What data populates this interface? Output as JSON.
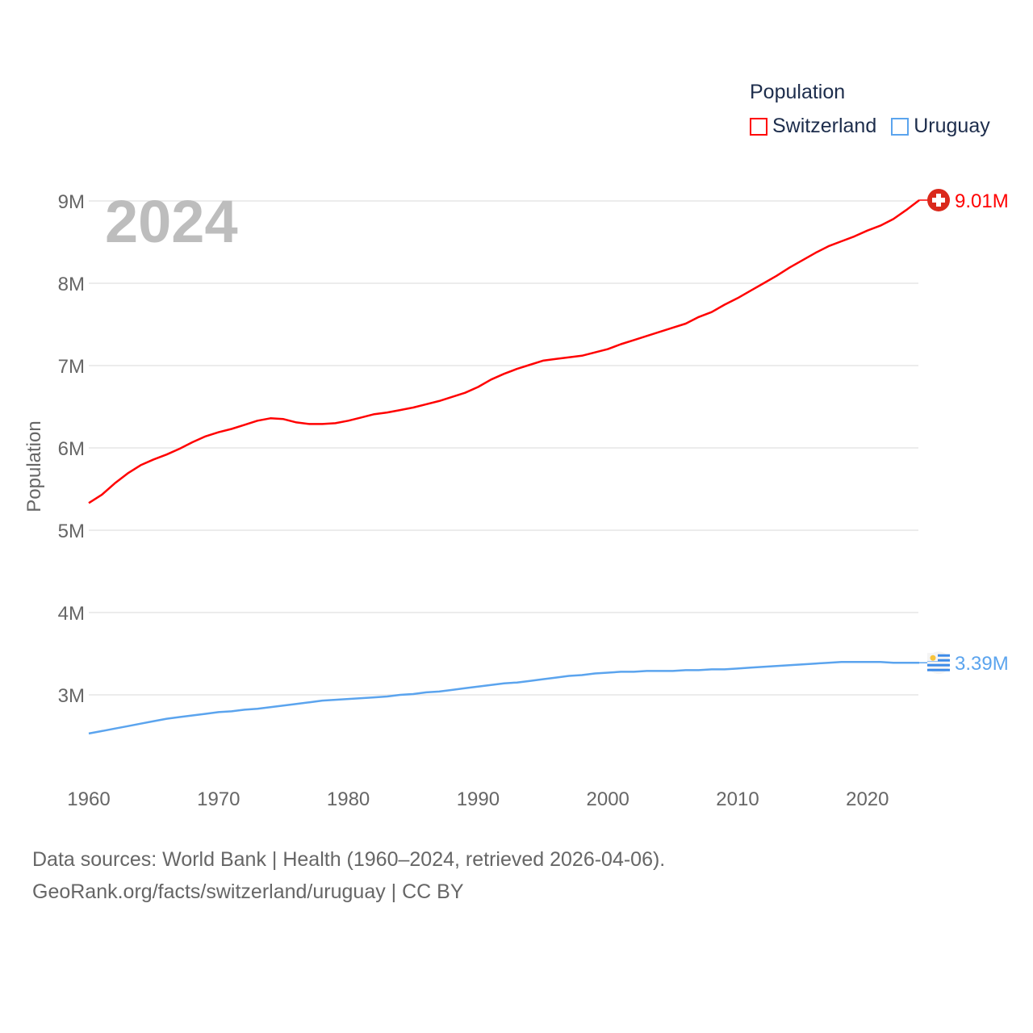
{
  "chart_data": {
    "type": "line",
    "title": "Population",
    "year_overlay": "2024",
    "ylabel": "Population",
    "xlabel": "",
    "ylim": [
      2.3,
      9.2
    ],
    "xlim": [
      1960,
      2024
    ],
    "grid": true,
    "legend_placement": "top-right",
    "y_ticks": [
      {
        "v": 3,
        "label": "3M"
      },
      {
        "v": 4,
        "label": "4M"
      },
      {
        "v": 5,
        "label": "5M"
      },
      {
        "v": 6,
        "label": "6M"
      },
      {
        "v": 7,
        "label": "7M"
      },
      {
        "v": 8,
        "label": "8M"
      },
      {
        "v": 9,
        "label": "9M"
      }
    ],
    "x_ticks": [
      {
        "v": 1960,
        "label": "1960"
      },
      {
        "v": 1970,
        "label": "1970"
      },
      {
        "v": 1980,
        "label": "1980"
      },
      {
        "v": 1990,
        "label": "1990"
      },
      {
        "v": 2000,
        "label": "2000"
      },
      {
        "v": 2010,
        "label": "2010"
      },
      {
        "v": 2020,
        "label": "2020"
      }
    ],
    "x_start": 1960,
    "series": [
      {
        "name": "Switzerland",
        "color": "#ff0000",
        "end_label": "9.01M",
        "flag": "switzerland-flag",
        "values": [
          5.33,
          5.43,
          5.57,
          5.69,
          5.79,
          5.86,
          5.92,
          5.99,
          6.07,
          6.14,
          6.19,
          6.23,
          6.28,
          6.33,
          6.36,
          6.35,
          6.31,
          6.29,
          6.29,
          6.3,
          6.33,
          6.37,
          6.41,
          6.43,
          6.46,
          6.49,
          6.53,
          6.57,
          6.62,
          6.67,
          6.74,
          6.83,
          6.9,
          6.96,
          7.01,
          7.06,
          7.08,
          7.1,
          7.12,
          7.16,
          7.2,
          7.26,
          7.31,
          7.36,
          7.41,
          7.46,
          7.51,
          7.59,
          7.65,
          7.74,
          7.82,
          7.91,
          8.0,
          8.09,
          8.19,
          8.28,
          8.37,
          8.45,
          8.51,
          8.57,
          8.64,
          8.7,
          8.78,
          8.89,
          9.01
        ]
      },
      {
        "name": "Uruguay",
        "color": "#5ba4ee",
        "end_label": "3.39M",
        "flag": "uruguay-flag",
        "values": [
          2.53,
          2.56,
          2.59,
          2.62,
          2.65,
          2.68,
          2.71,
          2.73,
          2.75,
          2.77,
          2.79,
          2.8,
          2.82,
          2.83,
          2.85,
          2.87,
          2.89,
          2.91,
          2.93,
          2.94,
          2.95,
          2.96,
          2.97,
          2.98,
          3.0,
          3.01,
          3.03,
          3.04,
          3.06,
          3.08,
          3.1,
          3.12,
          3.14,
          3.15,
          3.17,
          3.19,
          3.21,
          3.23,
          3.24,
          3.26,
          3.27,
          3.28,
          3.28,
          3.29,
          3.29,
          3.29,
          3.3,
          3.3,
          3.31,
          3.31,
          3.32,
          3.33,
          3.34,
          3.35,
          3.36,
          3.37,
          3.38,
          3.39,
          3.4,
          3.4,
          3.4,
          3.4,
          3.39,
          3.39,
          3.39
        ]
      }
    ]
  },
  "footer": {
    "line1": "Data sources: World Bank | Health (1960–2024, retrieved 2026-04-06).",
    "line2": "GeoRank.org/facts/switzerland/uruguay | CC BY"
  }
}
